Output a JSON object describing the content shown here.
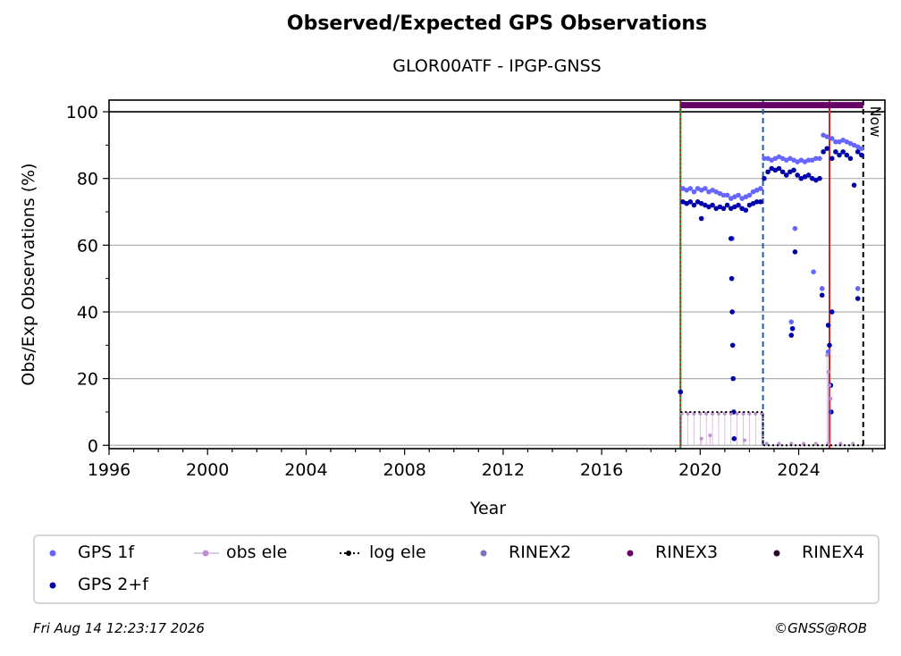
{
  "title": "Observed/Expected GPS Observations",
  "subtitle": "GLOR00ATF - IPGP-GNSS",
  "footer": {
    "timestamp": "Fri Aug 14 12:23:17 2026",
    "credit": "©GNSS@ROB"
  },
  "chart_data": {
    "type": "scatter",
    "xlabel": "Year",
    "ylabel": "Obs/Exp Observations (%)",
    "xlim": [
      1996,
      2027.5
    ],
    "ylim": [
      -1,
      103.5
    ],
    "xticks": [
      1996,
      2000,
      2004,
      2008,
      2012,
      2016,
      2020,
      2024
    ],
    "xtick_labels": [
      "1996",
      "2000",
      "2004",
      "2008",
      "2012",
      "2016",
      "2020",
      "2024"
    ],
    "yticks": [
      0,
      20,
      40,
      60,
      80,
      100
    ],
    "ytick_labels": [
      "0",
      "20",
      "40",
      "60",
      "80",
      "100"
    ],
    "grid": "horizontal",
    "legend_position": "bottom",
    "now_label": "Now",
    "reference_line_y": 100,
    "vertical_lines": [
      {
        "x": 2019.2,
        "style": "solid",
        "color": "#1f8f1f"
      },
      {
        "x": 2019.2,
        "style": "dotted",
        "color": "#d62728"
      },
      {
        "x": 2022.55,
        "style": "dashed",
        "color": "#1f5fa8"
      },
      {
        "x": 2025.25,
        "style": "solid",
        "color": "#d62728"
      },
      {
        "x": 2026.62,
        "style": "dashed",
        "color": "#000000"
      }
    ],
    "rinex3_bar": {
      "x_start": 2019.2,
      "x_end": 2026.62,
      "y": 102,
      "color": "#660066"
    },
    "series": [
      {
        "name": "GPS 1f",
        "color": "#6666ff",
        "points": [
          [
            2019.2,
            16
          ],
          [
            2019.3,
            77
          ],
          [
            2019.45,
            76.5
          ],
          [
            2019.6,
            77
          ],
          [
            2019.75,
            76
          ],
          [
            2019.9,
            77
          ],
          [
            2020.05,
            76.5
          ],
          [
            2020.2,
            77
          ],
          [
            2020.35,
            76
          ],
          [
            2020.5,
            76.5
          ],
          [
            2020.65,
            76
          ],
          [
            2020.8,
            75.5
          ],
          [
            2020.95,
            75
          ],
          [
            2021.1,
            75
          ],
          [
            2021.25,
            74
          ],
          [
            2021.4,
            74.5
          ],
          [
            2021.55,
            75
          ],
          [
            2021.7,
            74
          ],
          [
            2021.85,
            74.5
          ],
          [
            2022.0,
            75
          ],
          [
            2022.15,
            76
          ],
          [
            2022.3,
            76.5
          ],
          [
            2022.45,
            77
          ],
          [
            2022.6,
            86
          ],
          [
            2022.75,
            86
          ],
          [
            2022.9,
            85.5
          ],
          [
            2023.05,
            86
          ],
          [
            2023.2,
            86.5
          ],
          [
            2023.35,
            86
          ],
          [
            2023.5,
            85.5
          ],
          [
            2023.65,
            86
          ],
          [
            2023.8,
            85.5
          ],
          [
            2023.95,
            85
          ],
          [
            2024.1,
            85.5
          ],
          [
            2024.25,
            85
          ],
          [
            2024.4,
            85.5
          ],
          [
            2024.55,
            85.5
          ],
          [
            2024.7,
            86
          ],
          [
            2024.85,
            86
          ],
          [
            2025.0,
            93
          ],
          [
            2025.15,
            92.5
          ],
          [
            2025.35,
            92
          ],
          [
            2025.5,
            91
          ],
          [
            2025.65,
            91
          ],
          [
            2025.8,
            91.5
          ],
          [
            2025.95,
            91
          ],
          [
            2026.1,
            90.5
          ],
          [
            2026.25,
            90
          ],
          [
            2026.4,
            89.5
          ],
          [
            2026.55,
            89
          ],
          [
            2021.3,
            62
          ],
          [
            2023.7,
            37
          ],
          [
            2023.85,
            65
          ],
          [
            2024.6,
            52
          ],
          [
            2024.95,
            47
          ],
          [
            2025.2,
            28
          ],
          [
            2026.4,
            47
          ]
        ]
      },
      {
        "name": "GPS 2+f",
        "color": "#0000aa",
        "points": [
          [
            2019.2,
            16
          ],
          [
            2019.3,
            73
          ],
          [
            2019.45,
            72.5
          ],
          [
            2019.6,
            73
          ],
          [
            2019.75,
            72
          ],
          [
            2019.9,
            73
          ],
          [
            2020.05,
            72.5
          ],
          [
            2020.2,
            72
          ],
          [
            2020.35,
            71.5
          ],
          [
            2020.5,
            72
          ],
          [
            2020.65,
            71
          ],
          [
            2020.8,
            71.5
          ],
          [
            2020.95,
            71
          ],
          [
            2021.1,
            72
          ],
          [
            2021.25,
            71
          ],
          [
            2021.4,
            71.5
          ],
          [
            2021.55,
            72
          ],
          [
            2021.7,
            71
          ],
          [
            2021.85,
            70.5
          ],
          [
            2022.0,
            72
          ],
          [
            2022.15,
            72.5
          ],
          [
            2022.3,
            73
          ],
          [
            2022.45,
            73
          ],
          [
            2022.6,
            80
          ],
          [
            2022.75,
            82
          ],
          [
            2022.9,
            83
          ],
          [
            2023.05,
            82.5
          ],
          [
            2023.2,
            83
          ],
          [
            2023.35,
            82
          ],
          [
            2023.5,
            81
          ],
          [
            2023.65,
            82
          ],
          [
            2023.8,
            82.5
          ],
          [
            2023.95,
            81
          ],
          [
            2024.1,
            80
          ],
          [
            2024.25,
            80.5
          ],
          [
            2024.4,
            81
          ],
          [
            2024.55,
            80
          ],
          [
            2024.7,
            79.5
          ],
          [
            2024.85,
            80
          ],
          [
            2025.0,
            88
          ],
          [
            2025.15,
            89
          ],
          [
            2025.35,
            86
          ],
          [
            2025.5,
            88
          ],
          [
            2025.65,
            87
          ],
          [
            2025.8,
            88
          ],
          [
            2025.95,
            87
          ],
          [
            2026.1,
            86
          ],
          [
            2026.25,
            78
          ],
          [
            2026.4,
            88
          ],
          [
            2026.55,
            87
          ],
          [
            2020.05,
            68
          ],
          [
            2021.25,
            62
          ],
          [
            2021.28,
            50
          ],
          [
            2021.3,
            40
          ],
          [
            2021.32,
            30
          ],
          [
            2021.34,
            20
          ],
          [
            2021.36,
            10
          ],
          [
            2021.38,
            2
          ],
          [
            2023.7,
            33
          ],
          [
            2023.75,
            35
          ],
          [
            2023.85,
            58
          ],
          [
            2024.95,
            45
          ],
          [
            2025.2,
            36
          ],
          [
            2025.25,
            30
          ],
          [
            2025.3,
            18
          ],
          [
            2025.32,
            10
          ],
          [
            2025.35,
            40
          ],
          [
            2026.4,
            44
          ]
        ]
      },
      {
        "name": "obs ele",
        "color": "#bf8fcf",
        "points": [
          [
            2019.25,
            9.5
          ],
          [
            2019.5,
            9.5
          ],
          [
            2019.75,
            9.5
          ],
          [
            2020.0,
            9.5
          ],
          [
            2020.25,
            9.5
          ],
          [
            2020.5,
            9.5
          ],
          [
            2020.75,
            9.5
          ],
          [
            2021.0,
            9.5
          ],
          [
            2021.25,
            9.5
          ],
          [
            2021.5,
            9.5
          ],
          [
            2021.75,
            9.5
          ],
          [
            2022.0,
            9.5
          ],
          [
            2022.25,
            9.5
          ],
          [
            2022.5,
            9.5
          ],
          [
            2020.05,
            2
          ],
          [
            2020.4,
            3
          ],
          [
            2021.8,
            1.5
          ],
          [
            2022.7,
            0.5
          ],
          [
            2023.2,
            0.5
          ],
          [
            2023.7,
            0.5
          ],
          [
            2024.2,
            0.5
          ],
          [
            2024.7,
            0.5
          ],
          [
            2025.2,
            0.5
          ],
          [
            2025.7,
            0.5
          ],
          [
            2026.2,
            0.5
          ],
          [
            2025.15,
            27
          ],
          [
            2025.2,
            22
          ],
          [
            2025.25,
            18
          ],
          [
            2025.3,
            14
          ]
        ]
      },
      {
        "name": "log ele",
        "color": "#000000",
        "points": [
          [
            2019.2,
            10
          ],
          [
            2020.0,
            10
          ],
          [
            2021.0,
            10
          ],
          [
            2022.0,
            10
          ],
          [
            2022.55,
            10
          ],
          [
            2022.55,
            0
          ],
          [
            2023.5,
            0
          ],
          [
            2024.5,
            0
          ],
          [
            2025.5,
            0
          ],
          [
            2026.62,
            0
          ]
        ]
      }
    ],
    "legend": [
      {
        "label": "GPS 1f",
        "color": "#6666ff",
        "marker": "dot"
      },
      {
        "label": "obs ele",
        "color": "#bf8fcf",
        "marker": "line-dot"
      },
      {
        "label": "log ele",
        "color": "#000000",
        "marker": "dotted-line"
      },
      {
        "label": "RINEX2",
        "color": "#7f6fbf",
        "marker": "dot"
      },
      {
        "label": "RINEX3",
        "color": "#660066",
        "marker": "dot"
      },
      {
        "label": "RINEX4",
        "color": "#2a0a2a",
        "marker": "dot"
      },
      {
        "label": "GPS 2+f",
        "color": "#0000aa",
        "marker": "dot"
      }
    ]
  }
}
